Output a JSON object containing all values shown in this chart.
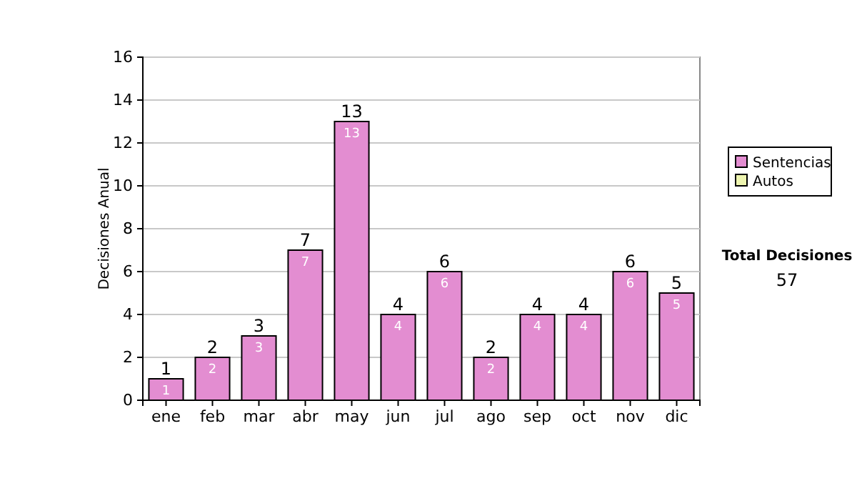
{
  "chart_data": {
    "type": "bar",
    "ylabel": "Decisiones Anual",
    "categories": [
      "ene",
      "feb",
      "mar",
      "abr",
      "may",
      "jun",
      "jul",
      "ago",
      "sep",
      "oct",
      "nov",
      "dic"
    ],
    "series": [
      {
        "name": "Sentencias",
        "color": "#e38dd1",
        "values": [
          1,
          2,
          3,
          7,
          13,
          4,
          6,
          2,
          4,
          4,
          6,
          5
        ],
        "value_labels": [
          "1",
          "2",
          "3",
          "7",
          "13",
          "4",
          "6",
          "2",
          "4",
          "4",
          "6",
          "5"
        ]
      },
      {
        "name": "Autos",
        "color": "#eef5b0",
        "values": [
          0,
          0,
          0,
          0,
          0,
          0,
          0,
          0,
          0,
          0,
          0,
          0
        ]
      }
    ],
    "stacked": true,
    "totals": [
      "1",
      "2",
      "3",
      "7",
      "13",
      "4",
      "6",
      "2",
      "4",
      "4",
      "6",
      "5"
    ],
    "ylim": [
      0,
      16
    ],
    "yticks": [
      0,
      2,
      4,
      6,
      8,
      10,
      12,
      14,
      16
    ],
    "grid": "y",
    "legend": "right",
    "annotations": [
      "Total Decisiones",
      "57"
    ]
  }
}
